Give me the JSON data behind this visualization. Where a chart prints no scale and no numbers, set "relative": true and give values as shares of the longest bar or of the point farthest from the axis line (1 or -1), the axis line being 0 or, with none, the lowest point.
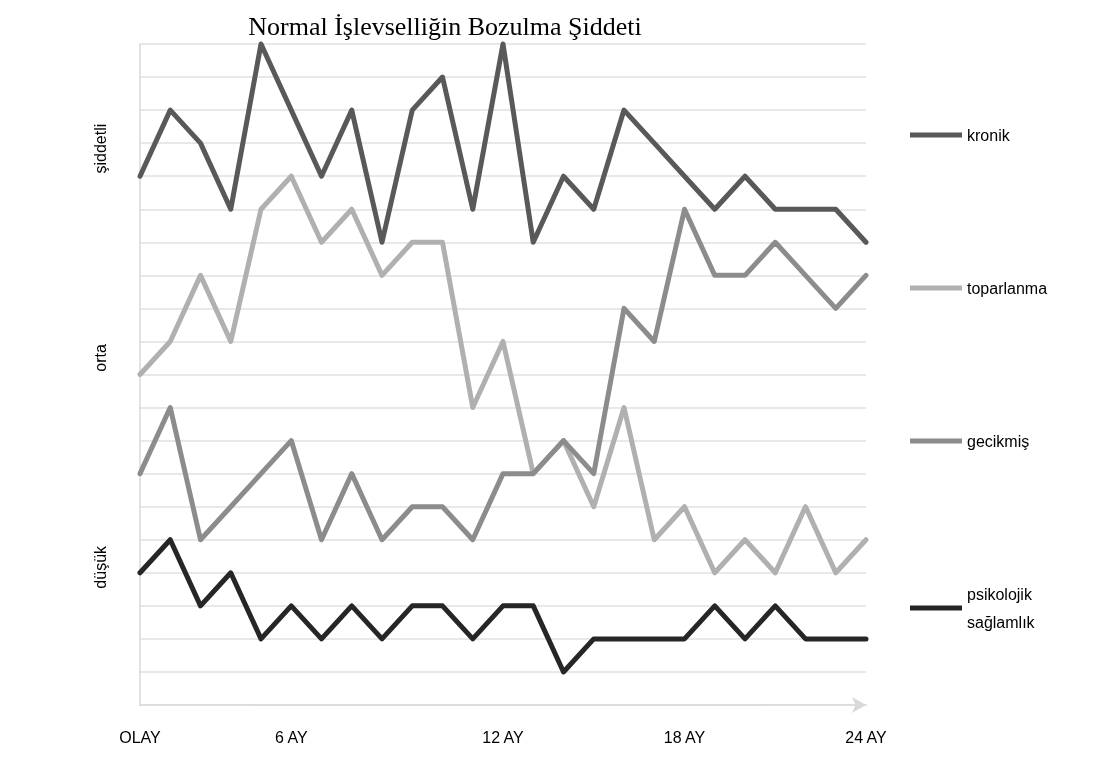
{
  "chart_data": {
    "type": "line",
    "title": "Normal İşlevselliğin Bozulma Şiddeti",
    "relative": true,
    "categories": [
      "OLAY",
      null,
      null,
      null,
      null,
      "6 AY",
      null,
      null,
      null,
      null,
      null,
      null,
      "12 AY",
      null,
      null,
      null,
      null,
      null,
      "18 AY",
      null,
      null,
      null,
      null,
      null,
      "24 AY"
    ],
    "annotations": [
      "şiddetli",
      "orta",
      "düşük"
    ],
    "series": [
      {
        "name": "kronik",
        "color": "#595959",
        "values": [
          0.8,
          0.9,
          0.85,
          0.75,
          1,
          0.9,
          0.8,
          0.9,
          0.7,
          0.9,
          0.95,
          0.75,
          1,
          0.7,
          0.8,
          0.75,
          0.9,
          0.85,
          0.8,
          0.75,
          0.8,
          0.75,
          0.75,
          0.75,
          0.7
        ]
      },
      {
        "name": "toparlanma",
        "color": "#b0b0b0",
        "values": [
          0.5,
          0.55,
          0.65,
          0.55,
          0.75,
          0.8,
          0.7,
          0.75,
          0.65,
          0.7,
          0.7,
          0.45,
          0.55,
          0.35,
          0.4,
          0.3,
          0.45,
          0.25,
          0.3,
          0.2,
          0.25,
          0.2,
          0.3,
          0.2,
          0.25
        ]
      },
      {
        "name": "gecikmiş",
        "color": "#8c8c8c",
        "values": [
          0.35,
          0.45,
          0.25,
          0.3,
          0.35,
          0.4,
          0.25,
          0.35,
          0.25,
          0.3,
          0.3,
          0.25,
          0.35,
          0.35,
          0.4,
          0.35,
          0.6,
          0.55,
          0.75,
          0.65,
          0.65,
          0.7,
          0.65,
          0.6,
          0.65
        ]
      },
      {
        "name": "psikolojik sağlamlık",
        "color": "#262626",
        "values": [
          0.2,
          0.25,
          0.15,
          0.2,
          0.1,
          0.15,
          0.1,
          0.15,
          0.1,
          0.15,
          0.15,
          0.1,
          0.15,
          0.15,
          0.05,
          0.1,
          0.1,
          0.1,
          0.1,
          0.15,
          0.1,
          0.15,
          0.1,
          0.1,
          0.1
        ]
      }
    ],
    "grid": "y",
    "legend": "right",
    "marker": "none",
    "line_style": "solid"
  }
}
